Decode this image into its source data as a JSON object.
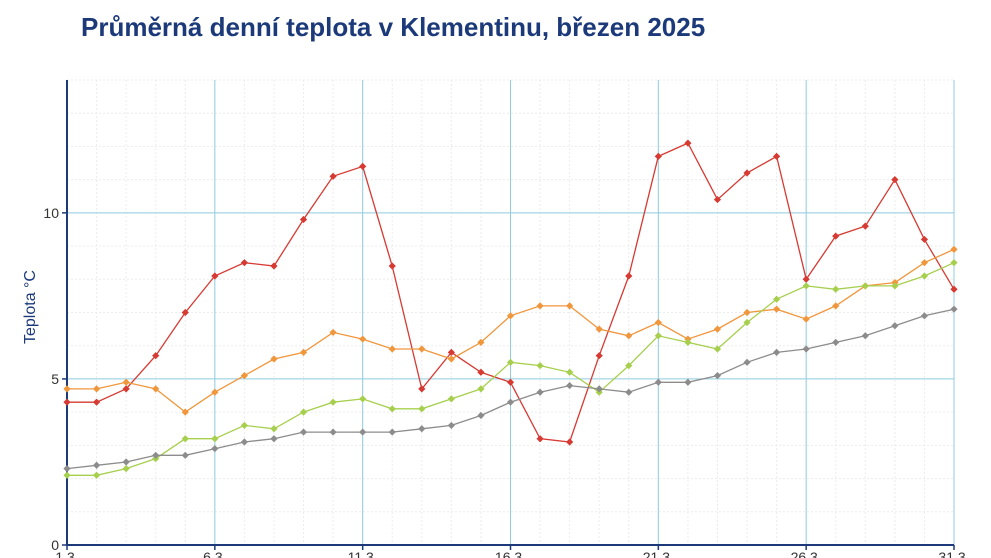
{
  "chart_data": {
    "type": "line",
    "title": "Průměrná denní teplota v Klementinu, březen 2025",
    "ylabel": "Teplota  °C",
    "ylim": [
      0,
      14
    ],
    "xlim": [
      1,
      31
    ],
    "yticks": [
      0,
      5,
      10
    ],
    "xticks": [
      1,
      6,
      11,
      16,
      21,
      26,
      31
    ],
    "xtick_labels": [
      "1.3.",
      "6.3.",
      "11.3.",
      "16.3.",
      "21.3.",
      "26.3.",
      "31.3."
    ],
    "grid": true,
    "x": [
      1,
      2,
      3,
      4,
      5,
      6,
      7,
      8,
      9,
      10,
      11,
      12,
      13,
      14,
      15,
      16,
      17,
      18,
      19,
      20,
      21,
      22,
      23,
      24,
      25,
      26,
      27,
      28,
      29,
      30,
      31
    ],
    "series": [
      {
        "color": "#d63a32",
        "values": [
          4.3,
          4.3,
          4.7,
          5.7,
          7.0,
          8.1,
          8.5,
          8.4,
          9.8,
          11.1,
          11.4,
          8.4,
          4.7,
          5.8,
          5.2,
          4.9,
          3.2,
          3.1,
          5.7,
          8.1,
          11.7,
          12.1,
          10.4,
          11.2,
          11.7,
          8.0,
          9.3,
          9.6,
          11.0,
          9.2,
          7.7
        ]
      },
      {
        "color": "#f0963c",
        "values": [
          4.7,
          4.7,
          4.9,
          4.7,
          4.0,
          4.6,
          5.1,
          5.6,
          5.8,
          6.4,
          6.2,
          5.9,
          5.9,
          5.6,
          6.1,
          6.9,
          7.2,
          7.2,
          6.5,
          6.3,
          6.7,
          6.2,
          6.5,
          7.0,
          7.1,
          6.8,
          7.2,
          7.8,
          7.9,
          8.5,
          8.9
        ]
      },
      {
        "color": "#a7cf4e",
        "values": [
          2.1,
          2.1,
          2.3,
          2.6,
          3.2,
          3.2,
          3.6,
          3.5,
          4.0,
          4.3,
          4.4,
          4.1,
          4.1,
          4.4,
          4.7,
          5.5,
          5.4,
          5.2,
          4.6,
          5.4,
          6.3,
          6.1,
          5.9,
          6.7,
          7.4,
          7.8,
          7.7,
          7.8,
          7.8,
          8.1,
          8.5
        ]
      },
      {
        "color": "#8c8c8c",
        "values": [
          2.3,
          2.4,
          2.5,
          2.7,
          2.7,
          2.9,
          3.1,
          3.2,
          3.4,
          3.4,
          3.4,
          3.4,
          3.5,
          3.6,
          3.9,
          4.3,
          4.6,
          4.8,
          4.7,
          4.6,
          4.9,
          4.9,
          5.1,
          5.5,
          5.8,
          5.9,
          6.1,
          6.3,
          6.6,
          6.9,
          7.1
        ]
      }
    ]
  }
}
